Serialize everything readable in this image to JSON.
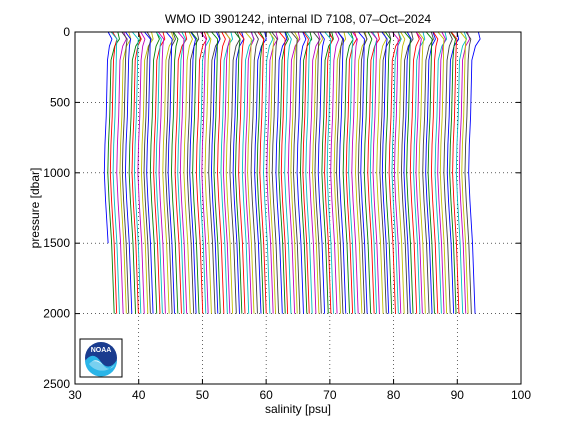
{
  "chart_data": {
    "type": "line",
    "title": "WMO ID 3901242, internal ID 7108, 07–Oct–2024",
    "xlabel": "salinity [psu]",
    "ylabel": "pressure [dbar]",
    "xlim": [
      30,
      100
    ],
    "ylim": [
      0,
      2500
    ],
    "y_inverted": true,
    "grid": true,
    "grid_style": "dotted",
    "x_ticks": [
      "30",
      "40",
      "50",
      "60",
      "70",
      "80",
      "90",
      "100"
    ],
    "y_ticks": [
      "0",
      "500",
      "1000",
      "1500",
      "2000",
      "2500"
    ],
    "profiles": {
      "count": 120,
      "first_offset": 35.0,
      "offset_step": 0.48,
      "max_pressure": 2000,
      "short_profile_max_pressure": 1500,
      "shape_pressure": [
        0,
        50,
        100,
        200,
        400,
        600,
        800,
        1000,
        1200,
        1500,
        2000
      ],
      "shape_salinity": [
        35.2,
        35.8,
        35.4,
        35.1,
        35.0,
        34.9,
        34.7,
        34.6,
        34.8,
        35.2,
        35.6
      ]
    },
    "series_colors": [
      "#0000ff",
      "#008000",
      "#ff0000",
      "#00bfbf",
      "#bf00bf",
      "#bfbf00",
      "#404040"
    ]
  },
  "logo": {
    "name": "noaa-logo",
    "text": "NOAA"
  }
}
